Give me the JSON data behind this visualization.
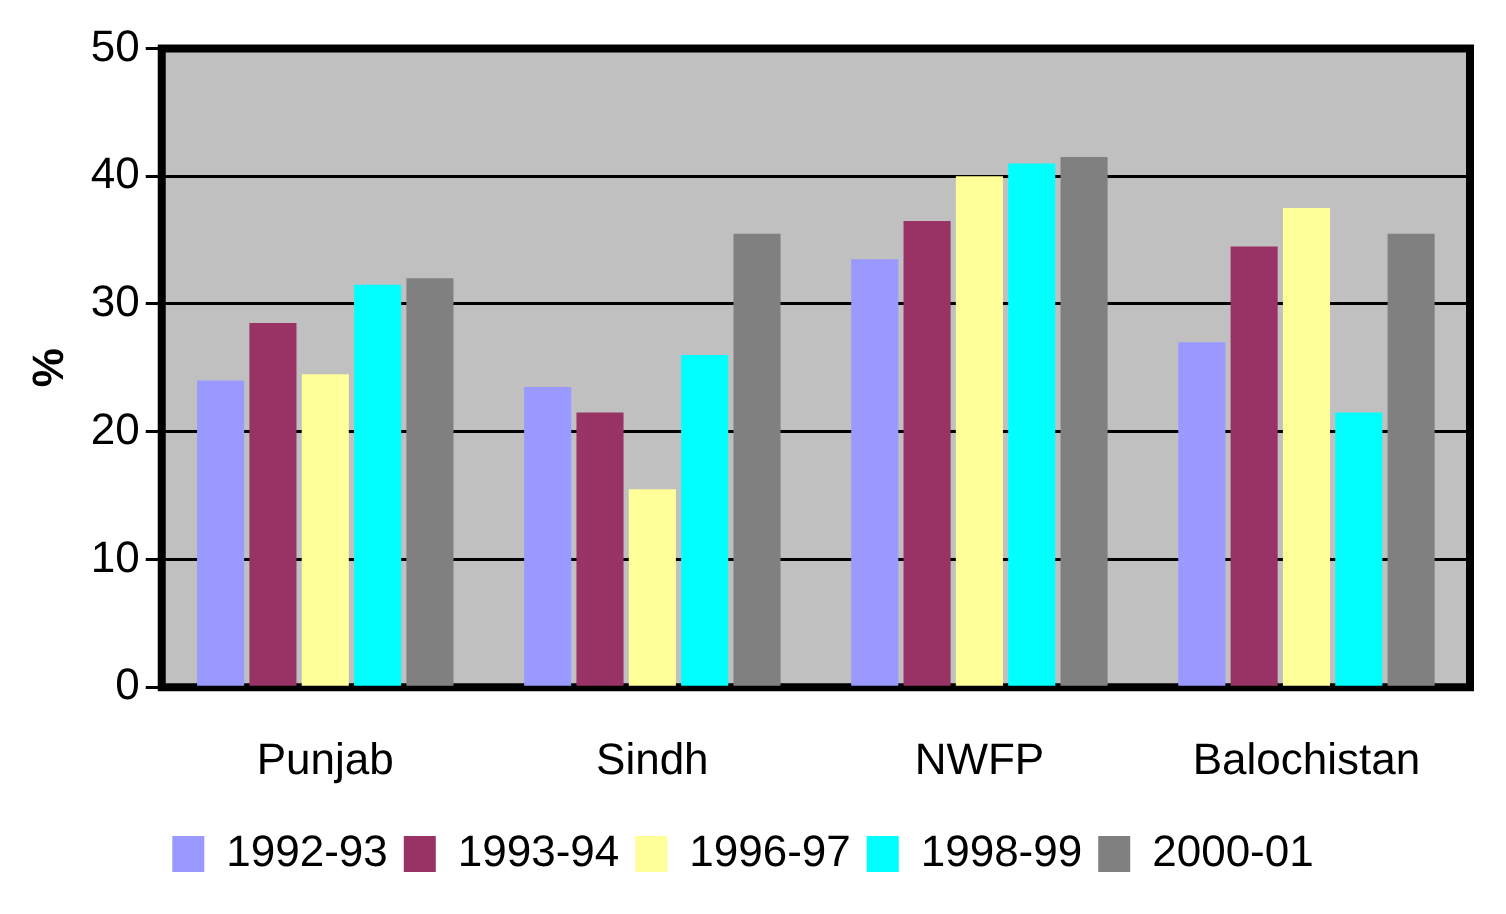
{
  "chart_data": {
    "type": "bar",
    "ylabel": "%",
    "categories": [
      "Punjab",
      "Sindh",
      "NWFP",
      "Balochistan"
    ],
    "series": [
      {
        "name": "1992-93",
        "color": "#9999ff",
        "values": [
          24,
          23.5,
          33.5,
          27
        ]
      },
      {
        "name": "1993-94",
        "color": "#993366",
        "values": [
          28.5,
          21.5,
          36.5,
          34.5
        ]
      },
      {
        "name": "1996-97",
        "color": "#ffff99",
        "values": [
          24.5,
          15.5,
          40,
          37.5
        ]
      },
      {
        "name": "1998-99",
        "color": "#00ffff",
        "values": [
          31.5,
          26,
          41,
          21.5
        ]
      },
      {
        "name": "2000-01",
        "color": "#808080",
        "values": [
          32,
          35.5,
          41.5,
          35.5
        ]
      }
    ],
    "ylim": [
      0,
      50
    ],
    "yticks": [
      0,
      10,
      20,
      30,
      40,
      50
    ],
    "grid": "y",
    "legend": "bottom"
  }
}
